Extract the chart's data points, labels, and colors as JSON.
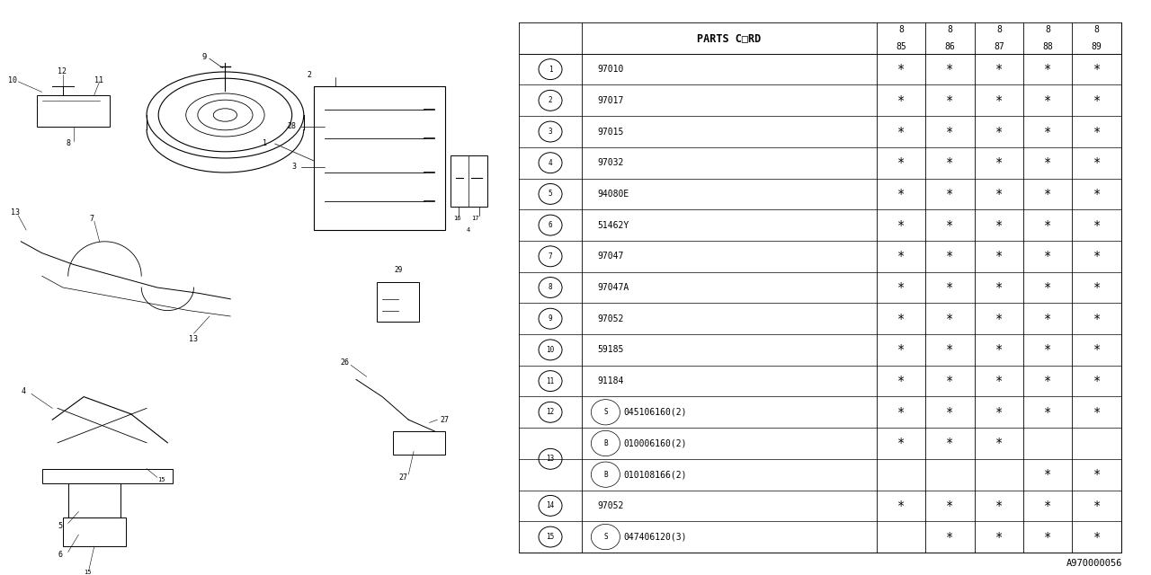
{
  "bg_color": "#ffffff",
  "title_code": "A970000056",
  "table": {
    "header_label": "PARTS C□RD",
    "col_headers": [
      "85",
      "86",
      "87",
      "88",
      "89"
    ],
    "col_headers_top": [
      "8",
      "8",
      "8",
      "8",
      "8"
    ],
    "rows": [
      {
        "num": "1",
        "prefix": "",
        "code": "97010",
        "cols": [
          "*",
          "*",
          "*",
          "*",
          "*"
        ]
      },
      {
        "num": "2",
        "prefix": "",
        "code": "97017",
        "cols": [
          "*",
          "*",
          "*",
          "*",
          "*"
        ]
      },
      {
        "num": "3",
        "prefix": "",
        "code": "97015",
        "cols": [
          "*",
          "*",
          "*",
          "*",
          "*"
        ]
      },
      {
        "num": "4",
        "prefix": "",
        "code": "97032",
        "cols": [
          "*",
          "*",
          "*",
          "*",
          "*"
        ]
      },
      {
        "num": "5",
        "prefix": "",
        "code": "94080E",
        "cols": [
          "*",
          "*",
          "*",
          "*",
          "*"
        ]
      },
      {
        "num": "6",
        "prefix": "",
        "code": "51462Y",
        "cols": [
          "*",
          "*",
          "*",
          "*",
          "*"
        ]
      },
      {
        "num": "7",
        "prefix": "",
        "code": "97047",
        "cols": [
          "*",
          "*",
          "*",
          "*",
          "*"
        ]
      },
      {
        "num": "8",
        "prefix": "",
        "code": "97047A",
        "cols": [
          "*",
          "*",
          "*",
          "*",
          "*"
        ]
      },
      {
        "num": "9",
        "prefix": "",
        "code": "97052",
        "cols": [
          "*",
          "*",
          "*",
          "*",
          "*"
        ]
      },
      {
        "num": "10",
        "prefix": "",
        "code": "59185",
        "cols": [
          "*",
          "*",
          "*",
          "*",
          "*"
        ]
      },
      {
        "num": "11",
        "prefix": "",
        "code": "91184",
        "cols": [
          "*",
          "*",
          "*",
          "*",
          "*"
        ]
      },
      {
        "num": "12",
        "prefix": "S",
        "code": "045106160(2)",
        "cols": [
          "*",
          "*",
          "*",
          "*",
          "*"
        ]
      },
      {
        "num": "13",
        "prefix": "B",
        "code": "010006160(2)",
        "cols": [
          "*",
          "*",
          "*",
          "",
          ""
        ]
      },
      {
        "num": "13b",
        "prefix": "B",
        "code": "010108166(2)",
        "cols": [
          "",
          "",
          "",
          "*",
          "*"
        ]
      },
      {
        "num": "14",
        "prefix": "",
        "code": "97052",
        "cols": [
          "*",
          "*",
          "*",
          "*",
          "*"
        ]
      },
      {
        "num": "15",
        "prefix": "S",
        "code": "047406120(3)",
        "cols": [
          "",
          "*",
          "*",
          "*",
          "*"
        ]
      }
    ]
  }
}
